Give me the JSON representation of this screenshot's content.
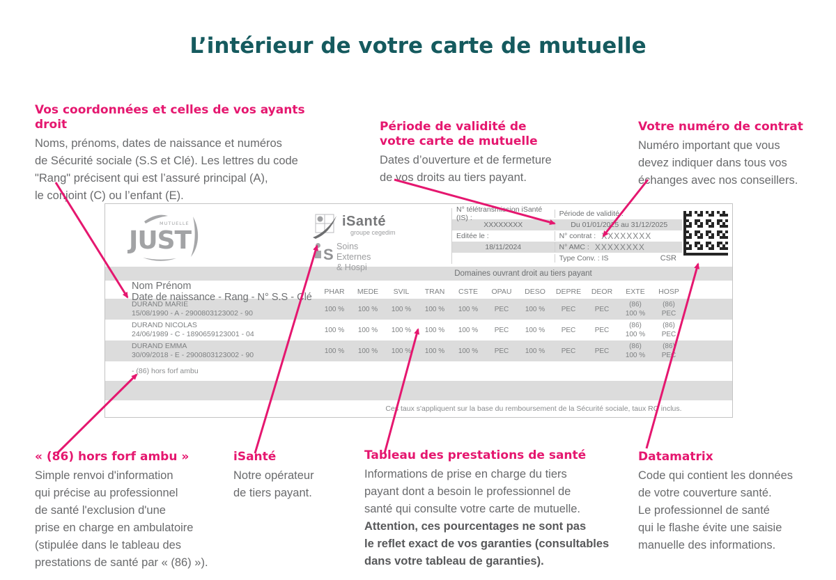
{
  "colors": {
    "pink": "#e5176f",
    "teal": "#155a5e"
  },
  "page": {
    "title": "L’intérieur de votre carte de mutuelle"
  },
  "annotations": {
    "coordonnees": {
      "heading": "Vos coordonnées et celles de vos ayants droit",
      "body": "Noms, prénoms, dates de naissance et numéros\nde Sécurité sociale (S.S et Clé). Les lettres du code\n\"Rang\" précisent qui est l’assuré principal (A),\nle conjoint (C) ou l’enfant (E)."
    },
    "periode": {
      "heading": "Période de validité de\nvotre carte de mutuelle",
      "body": "Dates d’ouverture et de fermeture\nde vos droits au tiers payant."
    },
    "contrat": {
      "heading": "Votre numéro de contrat",
      "body": "Numéro important que vous\ndevez indiquer dans tous vos\néchanges avec nos conseillers."
    },
    "horsforf": {
      "heading": "« (86) hors forf ambu »",
      "body": "Simple renvoi d'information\nqui précise au professionnel\nde santé l'exclusion d'une\nprise en charge en ambulatoire\n(stipulée dans le tableau des\nprestations de santé par « (86) »)."
    },
    "isante": {
      "heading": "iSanté",
      "body": "Notre opérateur\nde tiers payant."
    },
    "tableau": {
      "heading": "Tableau des prestations de santé",
      "body": "Informations de prise en charge du tiers\npayant dont a besoin le professionnel de\nsanté qui consulte votre carte de mutuelle.",
      "body_bold": "Attention, ces pourcentages ne sont pas\nle reflet exact de vos garanties (consultables\ndans votre tableau de garanties)."
    },
    "datamatrix": {
      "heading": "Datamatrix",
      "body": "Code qui contient les données\nde votre couverture santé.\nLe professionnel de santé\nqui le flashe évite une saisie\nmanuelle des informations."
    }
  },
  "card": {
    "logo": {
      "brand": "JUST",
      "brand_sub": "MUTUELLE"
    },
    "operator": {
      "name": "iSanté",
      "group": "groupe cegedim",
      "product_s": "S",
      "product_lines": "Soins Externes\n& Hospi"
    },
    "info": {
      "teletransmission_label": "N° télétransmission iSanté (IS) :",
      "teletransmission_value": "XXXXXXXX",
      "editee_label": "Editée le :",
      "editee_value": "18/11/2024",
      "periode_label": "Période de validité :",
      "periode_value": "Du 01/01/2025 au 31/12/2025",
      "contrat_label": "N° contrat :",
      "contrat_value": "XXXXXXXX",
      "amc_label": "N° AMC :",
      "amc_value": "XXXXXXXX",
      "type_conv": "Type Conv. : IS",
      "csr": "CSR"
    },
    "table": {
      "domaines_title": "Domaines ouvrant droit au tiers payant",
      "name_header_line1": "Nom Prénom",
      "name_header_line2": "Date de naissance - Rang - N° S.S - Clé",
      "columns": [
        "PHAR",
        "MEDE",
        "SVIL",
        "TRAN",
        "CSTE",
        "OPAU",
        "DESO",
        "DEPRE",
        "DEOR",
        "EXTE",
        "HOSP"
      ],
      "rows": [
        {
          "name": "DURAND MARIE",
          "details": "15/08/1990 - A - 2900803123002 - 90",
          "values": [
            "100 %",
            "100 %",
            "100 %",
            "100 %",
            "100 %",
            "PEC",
            "100 %",
            "PEC",
            "PEC"
          ],
          "exte_note": "(86)",
          "exte_value": "100 %",
          "hosp_note": "(86)",
          "hosp_value": "PEC"
        },
        {
          "name": "DURAND NICOLAS",
          "details": "24/06/1989 - C - 1890659123001 - 04",
          "values": [
            "100 %",
            "100 %",
            "100 %",
            "100 %",
            "100 %",
            "PEC",
            "100 %",
            "PEC",
            "PEC"
          ],
          "exte_note": "(86)",
          "exte_value": "100 %",
          "hosp_note": "(86)",
          "hosp_value": "PEC"
        },
        {
          "name": "DURAND EMMA",
          "details": "30/09/2018 - E - 2900803123002 - 90",
          "values": [
            "100 %",
            "100 %",
            "100 %",
            "100 %",
            "100 %",
            "PEC",
            "100 %",
            "PEC",
            "PEC"
          ],
          "exte_note": "(86)",
          "exte_value": "100 %",
          "hosp_note": "(86)",
          "hosp_value": "PEC"
        }
      ],
      "note": "- (86) hors forf ambu",
      "footer": "Ces taux s'appliquent sur la base du remboursement de la Sécurité sociale, taux RO inclus."
    }
  }
}
